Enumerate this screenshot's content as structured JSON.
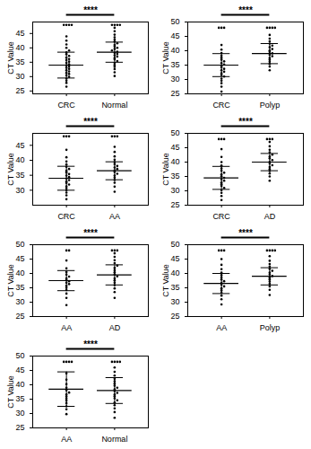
{
  "chart_data": [
    {
      "type": "scatter",
      "y_label": "CT Value",
      "annotation": "****",
      "categories": [
        "CRC",
        "Normal"
      ],
      "color": "#000000",
      "marker": "circle",
      "grid": false,
      "ylim": [
        24,
        49
      ],
      "yticks": [
        25,
        30,
        35,
        40,
        45
      ],
      "values": [
        [
          26.5,
          27.8,
          28.6,
          29.3,
          29.9,
          30.4,
          30.9,
          31.3,
          31.8,
          32.2,
          32.7,
          33.1,
          33.5,
          33.9,
          34.3,
          34.8,
          35.2,
          35.7,
          36.1,
          36.6,
          37.2,
          37.8,
          38.4,
          39.1,
          40.0,
          41.2,
          42.5,
          44.0,
          48,
          48,
          48,
          48
        ],
        [
          30.2,
          31.5,
          32.6,
          33.4,
          34.1,
          34.8,
          35.4,
          36.0,
          36.5,
          37.0,
          37.4,
          37.9,
          38.3,
          38.7,
          39.1,
          39.6,
          40.0,
          40.5,
          41.0,
          41.6,
          42.2,
          42.9,
          43.7,
          44.6,
          45.8,
          47.0,
          48,
          48,
          48,
          48
        ]
      ],
      "mean": [
        34,
        38.5
      ],
      "sd": [
        4.5,
        3.5
      ]
    },
    {
      "type": "scatter",
      "y_label": "CT Value",
      "annotation": "****",
      "categories": [
        "CRC",
        "Polyp"
      ],
      "color": "#000000",
      "marker": "circle",
      "grid": false,
      "ylim": [
        25,
        50
      ],
      "yticks": [
        25,
        30,
        35,
        40,
        45,
        50
      ],
      "values": [
        [
          25.8,
          27.5,
          28.7,
          29.6,
          30.3,
          31.0,
          31.6,
          32.2,
          32.7,
          33.2,
          33.7,
          34.2,
          34.7,
          35.2,
          35.7,
          36.3,
          36.9,
          37.6,
          38.3,
          39.2,
          40.4,
          42.0,
          48,
          48,
          48
        ],
        [
          33.2,
          34.5,
          35.4,
          36.2,
          36.9,
          37.5,
          38.1,
          38.6,
          39.1,
          39.6,
          40.1,
          40.6,
          41.2,
          41.8,
          42.5,
          43.3,
          44.2,
          45.5,
          48,
          48,
          48,
          48
        ]
      ],
      "mean": [
        35,
        39
      ],
      "sd": [
        4,
        3.5
      ]
    },
    {
      "type": "scatter",
      "y_label": "CT Value",
      "annotation": "****",
      "categories": [
        "CRC",
        "AA"
      ],
      "color": "#000000",
      "marker": "circle",
      "grid": false,
      "ylim": [
        25,
        49
      ],
      "yticks": [
        30,
        35,
        40,
        45
      ],
      "values": [
        [
          27.0,
          28.3,
          29.2,
          30.0,
          30.7,
          31.3,
          31.9,
          32.4,
          32.9,
          33.4,
          33.9,
          34.4,
          34.9,
          35.4,
          35.9,
          36.5,
          37.1,
          37.8,
          38.6,
          39.6,
          41.0,
          43.5,
          48,
          48,
          48
        ],
        [
          29.5,
          31.2,
          32.5,
          33.4,
          34.2,
          34.9,
          35.5,
          36.1,
          36.6,
          37.1,
          37.6,
          38.1,
          38.7,
          39.4,
          40.2,
          41.3,
          42.8,
          44.5,
          48,
          48,
          48
        ]
      ],
      "mean": [
        34,
        36.5
      ],
      "sd": [
        4,
        3
      ]
    },
    {
      "type": "scatter",
      "y_label": "CT Value",
      "annotation": "****",
      "categories": [
        "CRC",
        "AD"
      ],
      "color": "#000000",
      "marker": "circle",
      "grid": false,
      "ylim": [
        25,
        50
      ],
      "yticks": [
        25,
        30,
        35,
        40,
        45,
        50
      ],
      "values": [
        [
          26.8,
          28.2,
          29.3,
          30.2,
          31.0,
          31.7,
          32.3,
          32.9,
          33.5,
          34.0,
          34.5,
          35.1,
          35.7,
          36.3,
          37.0,
          37.8,
          38.8,
          40.0,
          41.8,
          44.5,
          48,
          48,
          48
        ],
        [
          33.5,
          35.0,
          36.0,
          36.9,
          37.6,
          38.3,
          38.9,
          39.5,
          40.1,
          40.7,
          41.3,
          41.9,
          42.6,
          43.4,
          44.3,
          45.5,
          47.0,
          48,
          48,
          48
        ]
      ],
      "mean": [
        34.5,
        40
      ],
      "sd": [
        4,
        3
      ]
    },
    {
      "type": "scatter",
      "y_label": "CT Value",
      "annotation": "****",
      "categories": [
        "AA",
        "AD"
      ],
      "color": "#000000",
      "marker": "circle",
      "grid": false,
      "ylim": [
        25,
        50
      ],
      "yticks": [
        25,
        30,
        35,
        40,
        45,
        50
      ],
      "values": [
        [
          29.0,
          31.5,
          33.0,
          34.2,
          35.0,
          35.7,
          36.3,
          36.8,
          37.3,
          37.8,
          38.3,
          38.9,
          39.6,
          40.5,
          41.8,
          44.5,
          48,
          48
        ],
        [
          31.5,
          33.5,
          34.8,
          35.9,
          36.8,
          37.6,
          38.3,
          39.0,
          39.7,
          40.4,
          41.1,
          41.9,
          42.7,
          43.6,
          44.6,
          45.8,
          47.0,
          48,
          48,
          48
        ]
      ],
      "mean": [
        37.5,
        39.5
      ],
      "sd": [
        3.5,
        3.5
      ]
    },
    {
      "type": "scatter",
      "y_label": "CT Value",
      "annotation": "****",
      "categories": [
        "AA",
        "Polyp"
      ],
      "color": "#000000",
      "marker": "circle",
      "grid": false,
      "ylim": [
        25,
        50
      ],
      "yticks": [
        25,
        30,
        35,
        40,
        45,
        50
      ],
      "values": [
        [
          29.2,
          31.0,
          32.3,
          33.3,
          34.1,
          34.8,
          35.5,
          36.1,
          36.7,
          37.3,
          37.9,
          38.6,
          39.4,
          40.3,
          41.5,
          43.0,
          45.0,
          48,
          48,
          48
        ],
        [
          32.5,
          34.3,
          35.5,
          36.4,
          37.2,
          37.9,
          38.5,
          39.1,
          39.7,
          40.3,
          40.9,
          41.6,
          42.4,
          43.3,
          44.4,
          46.0,
          48,
          48,
          48,
          48
        ]
      ],
      "mean": [
        36.5,
        39
      ],
      "sd": [
        3.5,
        3
      ]
    },
    {
      "type": "scatter",
      "y_label": "CT Value",
      "annotation": "****",
      "categories": [
        "AA",
        "Normal"
      ],
      "color": "#000000",
      "marker": "circle",
      "grid": false,
      "ylim": [
        25,
        50
      ],
      "yticks": [
        25,
        30,
        35,
        40,
        45,
        50
      ],
      "values": [
        [
          29.8,
          31.5,
          32.5,
          33.6,
          34.5,
          35.2,
          35.9,
          36.6,
          37.3,
          38.1,
          39.0,
          40.2,
          41.8,
          44.0,
          48,
          48,
          48,
          48
        ],
        [
          28.5,
          30.5,
          31.8,
          32.9,
          33.8,
          34.6,
          35.3,
          36.0,
          36.6,
          37.2,
          37.8,
          38.4,
          39.0,
          39.7,
          40.4,
          41.2,
          42.1,
          43.2,
          44.5,
          46.0,
          48,
          48,
          48,
          48
        ]
      ],
      "mean": [
        38.5,
        38
      ],
      "sd": [
        6,
        4.5
      ]
    }
  ]
}
